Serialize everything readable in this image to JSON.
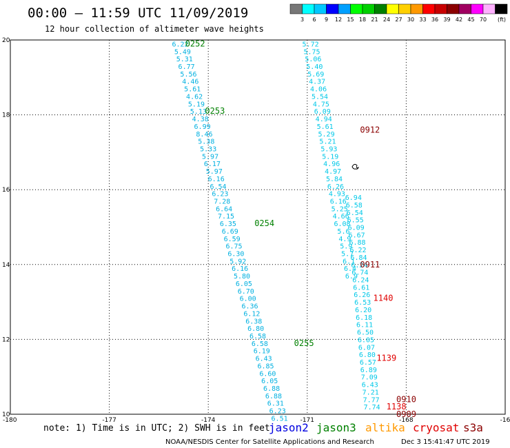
{
  "header": {
    "title": "00:00 – 11:59 UTC 11/09/2019",
    "subtitle": "12 hour collection of altimeter wave heights"
  },
  "legend": {
    "unit": "(ft)",
    "colors": [
      "#777777",
      "#00ffff",
      "#00c8ff",
      "#0000ff",
      "#00a0ff",
      "#00ff00",
      "#00d000",
      "#008000",
      "#ffff00",
      "#ffd000",
      "#ff9900",
      "#ff0000",
      "#c80000",
      "#8b0000",
      "#a00060",
      "#ff00ff",
      "#ffb0ff",
      "#000000"
    ],
    "labels": [
      "3",
      "6",
      "9",
      "12",
      "15",
      "18",
      "21",
      "24",
      "27",
      "30",
      "33",
      "36",
      "39",
      "42",
      "45",
      "70"
    ]
  },
  "chart_data": {
    "type": "scatter",
    "x_ticks": [
      "-180",
      "-177",
      "-174",
      "-171",
      "-168",
      "-16"
    ],
    "y_ticks": [
      "20",
      "18",
      "16",
      "14",
      "12",
      "10"
    ],
    "xlim": [
      -180,
      -165
    ],
    "ylim": [
      10,
      20
    ],
    "grid": true,
    "tracks": [
      {
        "color": "#00b0e0",
        "points": [
          {
            "lon": -174.85,
            "lat": 19.9,
            "v": "6.22"
          },
          {
            "lon": -174.78,
            "lat": 19.7,
            "v": "5.49"
          },
          {
            "lon": -174.72,
            "lat": 19.5,
            "v": "5.31"
          },
          {
            "lon": -174.66,
            "lat": 19.3,
            "v": "6.77"
          },
          {
            "lon": -174.6,
            "lat": 19.1,
            "v": "5.56"
          },
          {
            "lon": -174.54,
            "lat": 18.9,
            "v": "4.46"
          },
          {
            "lon": -174.48,
            "lat": 18.7,
            "v": "5.61"
          },
          {
            "lon": -174.42,
            "lat": 18.5,
            "v": "4.62"
          },
          {
            "lon": -174.36,
            "lat": 18.3,
            "v": "5.19"
          },
          {
            "lon": -174.3,
            "lat": 18.1,
            "v": "5.13"
          },
          {
            "lon": -174.24,
            "lat": 17.9,
            "v": "4.38"
          },
          {
            "lon": -174.18,
            "lat": 17.7,
            "v": "6.99"
          },
          {
            "lon": -174.12,
            "lat": 17.5,
            "v": "8.46"
          },
          {
            "lon": -174.06,
            "lat": 17.3,
            "v": "5.38"
          },
          {
            "lon": -174.0,
            "lat": 17.1,
            "v": "5.33"
          },
          {
            "lon": -173.94,
            "lat": 16.9,
            "v": "5.97"
          },
          {
            "lon": -173.88,
            "lat": 16.7,
            "v": "6.17"
          },
          {
            "lon": -173.82,
            "lat": 16.5,
            "v": "5.97"
          },
          {
            "lon": -173.76,
            "lat": 16.3,
            "v": "6.16"
          },
          {
            "lon": -173.7,
            "lat": 16.1,
            "v": "6.54"
          },
          {
            "lon": -173.64,
            "lat": 15.9,
            "v": "6.23"
          },
          {
            "lon": -173.58,
            "lat": 15.7,
            "v": "7.28"
          },
          {
            "lon": -173.52,
            "lat": 15.5,
            "v": "6.64"
          },
          {
            "lon": -173.46,
            "lat": 15.3,
            "v": "7.15"
          },
          {
            "lon": -173.4,
            "lat": 15.1,
            "v": "6.35"
          },
          {
            "lon": -173.34,
            "lat": 14.9,
            "v": "6.69"
          },
          {
            "lon": -173.28,
            "lat": 14.7,
            "v": "6.59"
          },
          {
            "lon": -173.22,
            "lat": 14.5,
            "v": "6.75"
          },
          {
            "lon": -173.16,
            "lat": 14.3,
            "v": "6.30"
          },
          {
            "lon": -173.1,
            "lat": 14.1,
            "v": "5.92"
          },
          {
            "lon": -173.04,
            "lat": 13.9,
            "v": "6.16"
          },
          {
            "lon": -172.98,
            "lat": 13.7,
            "v": "5.80"
          },
          {
            "lon": -172.92,
            "lat": 13.5,
            "v": "6.05"
          },
          {
            "lon": -172.86,
            "lat": 13.3,
            "v": "6.70"
          },
          {
            "lon": -172.8,
            "lat": 13.1,
            "v": "6.00"
          },
          {
            "lon": -172.74,
            "lat": 12.9,
            "v": "6.36"
          },
          {
            "lon": -172.68,
            "lat": 12.7,
            "v": "6.12"
          },
          {
            "lon": -172.62,
            "lat": 12.5,
            "v": "6.38"
          },
          {
            "lon": -172.56,
            "lat": 12.3,
            "v": "6.80"
          },
          {
            "lon": -172.5,
            "lat": 12.1,
            "v": "6.58"
          },
          {
            "lon": -172.44,
            "lat": 11.9,
            "v": "6.58"
          },
          {
            "lon": -172.38,
            "lat": 11.7,
            "v": "6.19"
          },
          {
            "lon": -172.32,
            "lat": 11.5,
            "v": "6.43"
          },
          {
            "lon": -172.26,
            "lat": 11.3,
            "v": "6.85"
          },
          {
            "lon": -172.2,
            "lat": 11.1,
            "v": "6.60"
          },
          {
            "lon": -172.14,
            "lat": 10.9,
            "v": "6.05"
          },
          {
            "lon": -172.08,
            "lat": 10.7,
            "v": "6.88"
          },
          {
            "lon": -172.02,
            "lat": 10.5,
            "v": "6.88"
          },
          {
            "lon": -171.96,
            "lat": 10.3,
            "v": "6.31"
          },
          {
            "lon": -171.9,
            "lat": 10.1,
            "v": "6.23"
          },
          {
            "lon": -171.84,
            "lat": 9.9,
            "v": "6.51"
          }
        ]
      },
      {
        "color": "#00c8e8",
        "points": [
          {
            "lon": -170.9,
            "lat": 19.9,
            "v": "5.72"
          },
          {
            "lon": -170.86,
            "lat": 19.7,
            "v": "5.75"
          },
          {
            "lon": -170.82,
            "lat": 19.5,
            "v": "5.06"
          },
          {
            "lon": -170.78,
            "lat": 19.3,
            "v": "5.40"
          },
          {
            "lon": -170.74,
            "lat": 19.1,
            "v": "5.69"
          },
          {
            "lon": -170.7,
            "lat": 18.9,
            "v": "4.37"
          },
          {
            "lon": -170.66,
            "lat": 18.7,
            "v": "4.06"
          },
          {
            "lon": -170.62,
            "lat": 18.5,
            "v": "5.54"
          },
          {
            "lon": -170.58,
            "lat": 18.3,
            "v": "4.75"
          },
          {
            "lon": -170.54,
            "lat": 18.1,
            "v": "6.09"
          },
          {
            "lon": -170.5,
            "lat": 17.9,
            "v": "4.94"
          },
          {
            "lon": -170.46,
            "lat": 17.7,
            "v": "5.61"
          },
          {
            "lon": -170.42,
            "lat": 17.5,
            "v": "5.29"
          },
          {
            "lon": -170.38,
            "lat": 17.3,
            "v": "5.21"
          },
          {
            "lon": -170.34,
            "lat": 17.1,
            "v": "5.93"
          },
          {
            "lon": -170.3,
            "lat": 16.9,
            "v": "5.19"
          },
          {
            "lon": -170.26,
            "lat": 16.7,
            "v": "4.96"
          },
          {
            "lon": -170.22,
            "lat": 16.5,
            "v": "4.97"
          },
          {
            "lon": -170.18,
            "lat": 16.3,
            "v": "5.84"
          },
          {
            "lon": -170.14,
            "lat": 16.1,
            "v": "6.26"
          },
          {
            "lon": -170.1,
            "lat": 15.9,
            "v": "4.93"
          },
          {
            "lon": -170.06,
            "lat": 15.7,
            "v": "6.16"
          },
          {
            "lon": -170.02,
            "lat": 15.5,
            "v": "5.25"
          },
          {
            "lon": -169.98,
            "lat": 15.3,
            "v": "4.66"
          },
          {
            "lon": -169.94,
            "lat": 15.1,
            "v": "6.08"
          },
          {
            "lon": -169.9,
            "lat": 14.9,
            "v": "5.6"
          },
          {
            "lon": -169.86,
            "lat": 14.7,
            "v": "4.9"
          },
          {
            "lon": -169.82,
            "lat": 14.5,
            "v": "5.9"
          },
          {
            "lon": -169.78,
            "lat": 14.3,
            "v": "5.7"
          },
          {
            "lon": -169.74,
            "lat": 14.1,
            "v": "6.1"
          },
          {
            "lon": -169.7,
            "lat": 13.9,
            "v": "6.4"
          },
          {
            "lon": -169.66,
            "lat": 13.7,
            "v": "6.9"
          }
        ]
      },
      {
        "color": "#00c8e8",
        "points": [
          {
            "lon": -169.6,
            "lat": 15.8,
            "v": "6.94"
          },
          {
            "lon": -169.58,
            "lat": 15.6,
            "v": "6.58"
          },
          {
            "lon": -169.56,
            "lat": 15.4,
            "v": "6.54"
          },
          {
            "lon": -169.54,
            "lat": 15.2,
            "v": "6.55"
          },
          {
            "lon": -169.52,
            "lat": 15.0,
            "v": "6.09"
          },
          {
            "lon": -169.5,
            "lat": 14.8,
            "v": "6.67"
          },
          {
            "lon": -169.48,
            "lat": 14.6,
            "v": "6.88"
          },
          {
            "lon": -169.46,
            "lat": 14.4,
            "v": "6.22"
          },
          {
            "lon": -169.44,
            "lat": 14.2,
            "v": "6.84"
          },
          {
            "lon": -169.42,
            "lat": 14.0,
            "v": "6.24"
          },
          {
            "lon": -169.4,
            "lat": 13.8,
            "v": "6.74"
          },
          {
            "lon": -169.38,
            "lat": 13.6,
            "v": "6.24"
          },
          {
            "lon": -169.36,
            "lat": 13.4,
            "v": "6.61"
          },
          {
            "lon": -169.34,
            "lat": 13.2,
            "v": "6.26"
          },
          {
            "lon": -169.32,
            "lat": 13.0,
            "v": "6.53"
          },
          {
            "lon": -169.3,
            "lat": 12.8,
            "v": "6.20"
          },
          {
            "lon": -169.28,
            "lat": 12.6,
            "v": "6.18"
          },
          {
            "lon": -169.26,
            "lat": 12.4,
            "v": "6.11"
          },
          {
            "lon": -169.24,
            "lat": 12.2,
            "v": "6.50"
          },
          {
            "lon": -169.22,
            "lat": 12.0,
            "v": "6.05"
          },
          {
            "lon": -169.2,
            "lat": 11.8,
            "v": "6.07"
          },
          {
            "lon": -169.18,
            "lat": 11.6,
            "v": "6.80"
          },
          {
            "lon": -169.16,
            "lat": 11.4,
            "v": "6.57"
          },
          {
            "lon": -169.14,
            "lat": 11.2,
            "v": "6.89"
          },
          {
            "lon": -169.12,
            "lat": 11.0,
            "v": "7.09"
          },
          {
            "lon": -169.1,
            "lat": 10.8,
            "v": "6.43"
          },
          {
            "lon": -169.08,
            "lat": 10.6,
            "v": "7.21"
          },
          {
            "lon": -169.06,
            "lat": 10.4,
            "v": "7.77"
          },
          {
            "lon": -169.04,
            "lat": 10.2,
            "v": "7.74"
          }
        ]
      }
    ],
    "passes": [
      {
        "label": "0252",
        "color": "#008000",
        "lon": -174.7,
        "lat": 19.9
      },
      {
        "label": "0253",
        "color": "#008000",
        "lon": -174.1,
        "lat": 18.1
      },
      {
        "label": "0254",
        "color": "#008000",
        "lon": -172.6,
        "lat": 15.1
      },
      {
        "label": "0255",
        "color": "#008000",
        "lon": -171.4,
        "lat": 11.9
      },
      {
        "label": "0912",
        "color": "#8b0000",
        "lon": -169.4,
        "lat": 17.6
      },
      {
        "label": "0911",
        "color": "#8b0000",
        "lon": -169.4,
        "lat": 14.0
      },
      {
        "label": "1140",
        "color": "#e00000",
        "lon": -169.0,
        "lat": 13.1
      },
      {
        "label": "1139",
        "color": "#e00000",
        "lon": -168.9,
        "lat": 11.5
      },
      {
        "label": "0910",
        "color": "#8b0000",
        "lon": -168.3,
        "lat": 10.4
      },
      {
        "label": "1138",
        "color": "#e00000",
        "lon": -168.6,
        "lat": 10.2
      },
      {
        "label": "0909",
        "color": "#8b0000",
        "lon": -168.3,
        "lat": 10.0
      }
    ]
  },
  "note": "note: 1) Time is in UTC; 2) SWH is in feet",
  "satellites": [
    {
      "name": "jason2",
      "color": "#0000e0"
    },
    {
      "name": "jason3",
      "color": "#008000"
    },
    {
      "name": "altika",
      "color": "#ff9900"
    },
    {
      "name": "cryosat",
      "color": "#e00000"
    },
    {
      "name": "s3a",
      "color": "#8b0000"
    }
  ],
  "footer": {
    "left": "NOAA/NESDIS Center for Satellite Applications and Research",
    "right": "Dec  3 15:41:47 UTC 2019"
  }
}
